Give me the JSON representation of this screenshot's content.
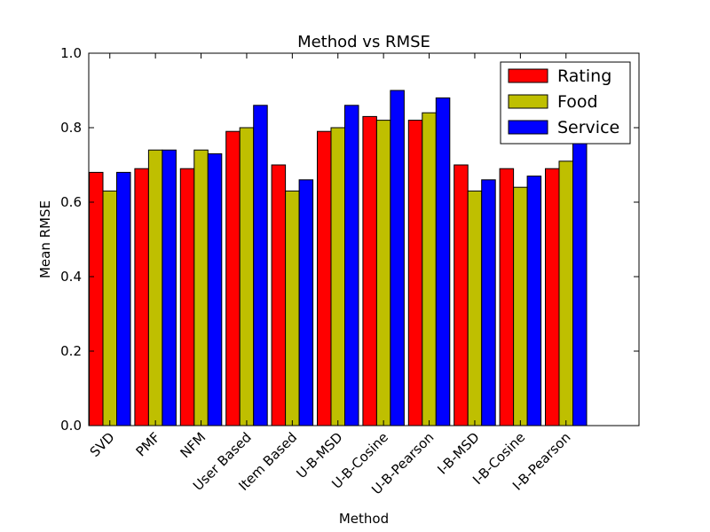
{
  "chart_data": {
    "type": "bar",
    "title": "Method vs RMSE",
    "xlabel": "Method",
    "ylabel": "Mean RMSE",
    "ylim": [
      0,
      1.0
    ],
    "yticks": [
      "0.0",
      "0.2",
      "0.4",
      "0.6",
      "0.8",
      "1.0"
    ],
    "ytick_values": [
      0,
      0.2,
      0.4,
      0.6,
      0.8,
      1.0
    ],
    "grid": false,
    "legend_position": "top-right",
    "categories": [
      "SVD",
      "PMF",
      "NFM",
      "User Based",
      "Item Based",
      "U-B-MSD",
      "U-B-Cosine",
      "U-B-Pearson",
      "I-B-MSD",
      "I-B-Cosine",
      "I-B-Pearson"
    ],
    "series": [
      {
        "name": "Rating",
        "color": "#ff0000",
        "values": [
          0.68,
          0.69,
          0.69,
          0.79,
          0.7,
          0.79,
          0.83,
          0.82,
          0.7,
          0.69,
          0.69
        ]
      },
      {
        "name": "Food",
        "color": "#bfbf00",
        "values": [
          0.63,
          0.74,
          0.74,
          0.8,
          0.63,
          0.8,
          0.82,
          0.84,
          0.63,
          0.64,
          0.71
        ]
      },
      {
        "name": "Service",
        "color": "#0000ff",
        "values": [
          0.68,
          0.74,
          0.73,
          0.86,
          0.66,
          0.86,
          0.9,
          0.88,
          0.66,
          0.67,
          0.76
        ]
      }
    ]
  }
}
